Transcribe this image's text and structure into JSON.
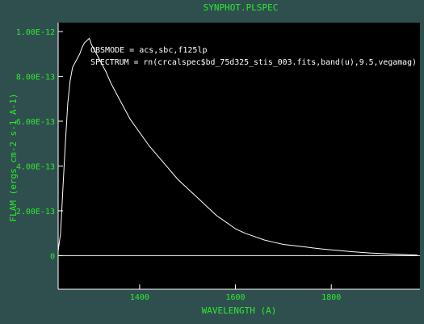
{
  "window": {
    "background": "#2f4f4f",
    "plot_background": "#000000",
    "label_color": "#2ee82e",
    "frame_color": "#ffffff"
  },
  "chart_data": {
    "type": "line",
    "title": "SYNPHOT.PLSPEC",
    "xlabel": "WAVELENGTH (A)",
    "ylabel": "FLAM (ergs cm-2 s-1 A-1)",
    "xlim": [
      1230,
      1985
    ],
    "ylim": [
      -1.5e-13,
      1.04e-12
    ],
    "x_ticks": [
      1400,
      1600,
      1800
    ],
    "x_tick_labels": [
      "1400",
      "1600",
      "1800"
    ],
    "y_ticks": [
      0,
      2e-13,
      4e-13,
      6e-13,
      8e-13,
      1e-12
    ],
    "y_tick_labels": [
      "0",
      "2.00E-13",
      "4.00E-13",
      "6.00E-13",
      "8.00E-13",
      "1.00E-12"
    ],
    "annotations": [
      "OBSMODE = acs,sbc,f125lp",
      "SPECTRUM = rn(crcalspec$bd_75d325_stis_003.fits,band(u),9.5,vegamag)"
    ],
    "grid": false,
    "legend": "none",
    "series": [
      {
        "x": [
          1230,
          1235,
          1240,
          1245,
          1250,
          1255,
          1260,
          1265,
          1270,
          1275,
          1280,
          1285,
          1290,
          1295,
          1300,
          1310,
          1320,
          1330,
          1340,
          1350,
          1360,
          1370,
          1380,
          1390,
          1400,
          1420,
          1440,
          1460,
          1480,
          1500,
          1520,
          1540,
          1560,
          1580,
          1600,
          1620,
          1640,
          1660,
          1680,
          1700,
          1720,
          1740,
          1760,
          1780,
          1800,
          1820,
          1840,
          1860,
          1880,
          1900,
          1920,
          1940,
          1960,
          1980
        ],
        "y": [
          2e-14,
          1e-13,
          3e-13,
          5e-13,
          6.8e-13,
          7.8e-13,
          8.4e-13,
          8.6e-13,
          8.8e-13,
          9e-13,
          9.3e-13,
          9.5e-13,
          9.6e-13,
          9.7e-13,
          9.4e-13,
          9e-13,
          8.6e-13,
          8.2e-13,
          7.7e-13,
          7.3e-13,
          6.9e-13,
          6.5e-13,
          6.1e-13,
          5.8e-13,
          5.5e-13,
          4.9e-13,
          4.4e-13,
          3.9e-13,
          3.4e-13,
          3e-13,
          2.6e-13,
          2.2e-13,
          1.8e-13,
          1.5e-13,
          1.2e-13,
          1e-13,
          8.5e-14,
          7e-14,
          6e-14,
          5e-14,
          4.5e-14,
          4e-14,
          3.5e-14,
          3e-14,
          2.6e-14,
          2.2e-14,
          1.8e-14,
          1.5e-14,
          1.2e-14,
          1e-14,
          8e-15,
          6e-15,
          4e-15,
          2e-15
        ]
      }
    ]
  }
}
